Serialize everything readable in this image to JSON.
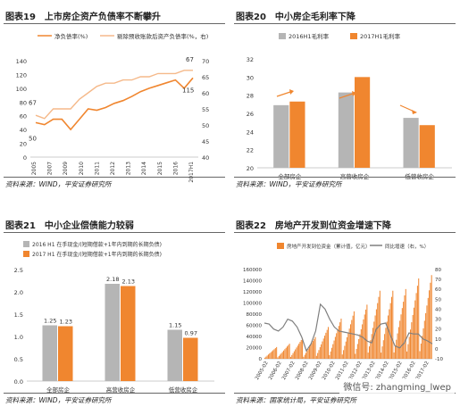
{
  "colors": {
    "orange": "#F0862F",
    "gray": "#B5B5B5",
    "darkgray": "#7F7F7F"
  },
  "panels": [
    {
      "title": "图表19　上市房企资产负债率不断攀升",
      "source": "资料来源：WIND，平安证券研究所"
    },
    {
      "title": "图表20　中小房企毛利率下降",
      "source": "资料来源：WIND，平安证券研究所"
    },
    {
      "title": "图表21　中小企业偿债能力较弱",
      "source": "资料来源：WIND，平安证券研究所"
    },
    {
      "title": "图表22　房地产开发到位资金增速下降",
      "source": "资料来源：国家统计局，平安证券研究所"
    }
  ],
  "watermark": "微信号: zhangming_lwep",
  "chart_data": [
    {
      "type": "line",
      "series": [
        {
          "name": "净负债率(%)",
          "axis": "left",
          "color": "#F0862F",
          "values": [
            50,
            47,
            55,
            55,
            40,
            55,
            70,
            68,
            72,
            78,
            82,
            88,
            95,
            100,
            104,
            108,
            112,
            100,
            115
          ]
        },
        {
          "name": "剔除预收账款后资产负债率(%，右)",
          "axis": "right",
          "color": "#F5B98A",
          "values": [
            53,
            52,
            55,
            55,
            55,
            58,
            60,
            62,
            63,
            63,
            64,
            64,
            65,
            65,
            66,
            66,
            66,
            67,
            67
          ]
        }
      ],
      "x_points": 19,
      "xticks": [
        "2005",
        "2007",
        "2009",
        "2010",
        "2011",
        "2012",
        "2013",
        "2014",
        "2015",
        "2016",
        "2017H1"
      ],
      "ylim": [
        0,
        140
      ],
      "yticks": [
        0,
        20,
        40,
        60,
        80,
        100,
        120,
        140
      ],
      "y2lim": [
        40,
        70
      ],
      "y2ticks": [
        40,
        45,
        50,
        55,
        60,
        65,
        70
      ],
      "annotations": [
        {
          "text": "67",
          "pos": "left-start"
        },
        {
          "text": "50",
          "pos": "left-low"
        },
        {
          "text": "115",
          "pos": "right-end"
        },
        {
          "text": "67",
          "pos": "right-top"
        }
      ]
    },
    {
      "type": "bar",
      "categories": [
        "全部房企",
        "高营收房企",
        "低营收房企"
      ],
      "series": [
        {
          "name": "2016H1毛利率",
          "color": "#B5B5B5",
          "values": [
            26.9,
            28.3,
            25.5
          ]
        },
        {
          "name": "2017H1毛利率",
          "color": "#F0862F",
          "values": [
            27.3,
            30.0,
            24.7
          ]
        }
      ],
      "ylim": [
        20,
        32
      ],
      "yticks": [
        20,
        22,
        24,
        26,
        28,
        30,
        32
      ]
    },
    {
      "type": "bar",
      "categories": [
        "全部房企",
        "高营收房企",
        "低营收房企"
      ],
      "series": [
        {
          "name": "2016 H1 在手现金/(短期借款+1年内到期的长期负债)",
          "color": "#B5B5B5",
          "values": [
            1.25,
            2.18,
            1.15
          ]
        },
        {
          "name": "2017 H1 在手现金/(短期借款+1年内到期的长期负债)",
          "color": "#F0862F",
          "values": [
            1.23,
            2.13,
            0.97
          ]
        }
      ],
      "ylim": [
        0,
        2.5
      ],
      "yticks": [
        "0.0",
        "0.5",
        "1.0",
        "1.5",
        "2.0",
        "2.5"
      ],
      "data_labels": [
        [
          "1.25",
          "2.18",
          "1.15"
        ],
        [
          "1.23",
          "2.13",
          "0.97"
        ]
      ]
    },
    {
      "type": "bar",
      "series": [
        {
          "name": "房地产开发到位资金（累计值，亿元）",
          "axis": "left",
          "color": "#F0862F"
        },
        {
          "name": "同比增速（右，%）",
          "axis": "right",
          "color": "#7F7F7F"
        }
      ],
      "ylim": [
        0,
        160000
      ],
      "yticks": [
        0,
        20000,
        40000,
        60000,
        80000,
        100000,
        120000,
        140000,
        160000
      ],
      "y2lim": [
        -10,
        80
      ],
      "y2ticks": [
        -10,
        0,
        10,
        20,
        30,
        40,
        50,
        60,
        70,
        80
      ],
      "xticks": [
        "2005-02",
        "2006-02",
        "2007-02",
        "2008-02",
        "2009-02",
        "2010-02",
        "2011-02",
        "2012-02",
        "2013-02",
        "2014-02",
        "2015-02",
        "2016-02",
        "2017-02"
      ],
      "annual_peaks": [
        21000,
        27000,
        37000,
        39000,
        57000,
        72000,
        85000,
        97000,
        122000,
        122000,
        125000,
        144000,
        150000
      ],
      "growth_pct": [
        26,
        25,
        20,
        18,
        22,
        30,
        28,
        22,
        12,
        -2,
        5,
        18,
        45,
        40,
        30,
        22,
        18,
        17,
        16,
        15,
        14,
        12,
        8,
        6,
        20,
        25,
        26,
        14,
        3,
        1,
        6,
        16,
        15,
        15,
        10,
        8,
        5
      ]
    }
  ]
}
